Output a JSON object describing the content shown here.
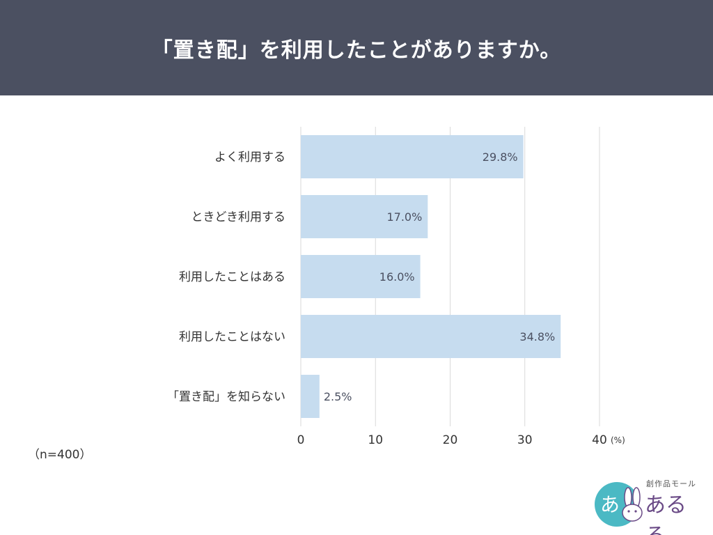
{
  "header": {
    "title": "「置き配」を利用したことがありますか。"
  },
  "note": {
    "sample": "（n=400）"
  },
  "brand": {
    "tagline": "創作品モール",
    "name": "あるる",
    "logo_text": "あ"
  },
  "colors": {
    "header_bg": "#4b5061",
    "bar": "#c6dcef",
    "grid": "#d9d9d9",
    "label_text": "#333333",
    "value_text": "#4b5061"
  },
  "chart_data": {
    "type": "bar",
    "orientation": "horizontal",
    "categories": [
      "よく利用する",
      "ときどき利用する",
      "利用したことはある",
      "利用したことはない",
      "「置き配」を知らない"
    ],
    "values": [
      29.8,
      17.0,
      16.0,
      34.8,
      2.5
    ],
    "value_labels": [
      "29.8%",
      "17.0%",
      "16.0%",
      "34.8%",
      "2.5%"
    ],
    "x_ticks": [
      "0",
      "10",
      "20",
      "30",
      "40"
    ],
    "x_tick_values": [
      0,
      10,
      20,
      30,
      40
    ],
    "unit_label": "(%)",
    "xlim": [
      0,
      40
    ],
    "grid": true
  }
}
